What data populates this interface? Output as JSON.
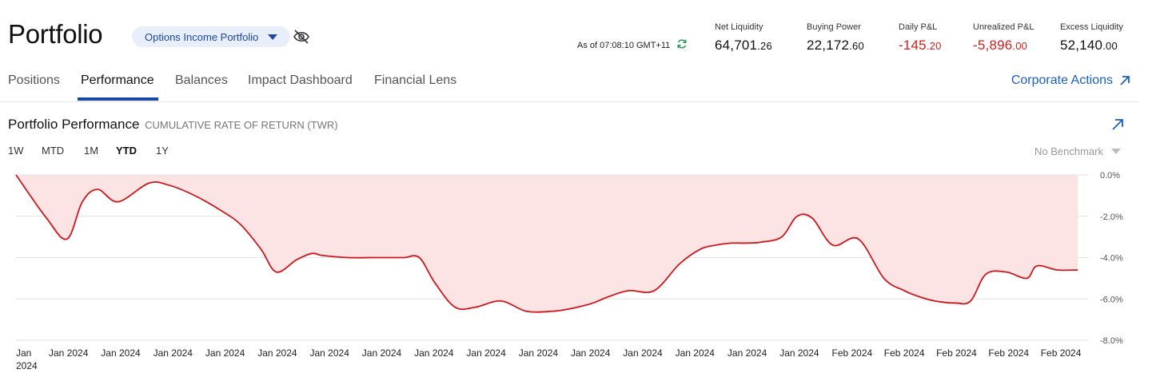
{
  "header": {
    "title": "Portfolio",
    "account_select": "Options Income Portfolio",
    "as_of": "As of 07:08:10 GMT+11"
  },
  "metrics": [
    {
      "label": "Net Liquidity",
      "int": "64,701",
      "dec": ".26",
      "negative": false
    },
    {
      "label": "Buying Power",
      "int": "22,172",
      "dec": ".60",
      "negative": false
    },
    {
      "label": "Daily P&L",
      "int": "-145",
      "dec": ".20",
      "negative": true
    },
    {
      "label": "Unrealized P&L",
      "int": "-5,896",
      "dec": ".00",
      "negative": true
    },
    {
      "label": "Excess Liquidity",
      "int": "52,140",
      "dec": ".00",
      "negative": false
    }
  ],
  "tabs": [
    "Positions",
    "Performance",
    "Balances",
    "Impact Dashboard",
    "Financial Lens"
  ],
  "active_tab": "Performance",
  "corporate_actions": "Corporate Actions",
  "section": {
    "title": "Portfolio Performance",
    "subtitle": "CUMULATIVE RATE OF RETURN (TWR)"
  },
  "ranges": [
    "1W",
    "MTD",
    "1M",
    "YTD",
    "1Y"
  ],
  "active_range": "YTD",
  "benchmark": "No Benchmark",
  "colors": {
    "accent": "#1a48a8",
    "negative": "#cc1f1f",
    "line": "#d0161b",
    "fill": "#fce4e4"
  },
  "chart_data": {
    "type": "area",
    "ylim": [
      -8,
      0
    ],
    "ytick_labels": [
      "0.0%",
      "-2.0%",
      "-4.0%",
      "-6.0%",
      "-8.0%"
    ],
    "xtick_labels": [
      "Jan 2024",
      "Jan 2024",
      "Jan 2024",
      "Jan 2024",
      "Jan 2024",
      "Jan 2024",
      "Jan 2024",
      "Jan 2024",
      "Jan 2024",
      "Jan 2024",
      "Jan 2024",
      "Jan 2024",
      "Jan 2024",
      "Jan 2024",
      "Jan 2024",
      "Jan 2024",
      "Feb 2024",
      "Feb 2024",
      "Feb 2024",
      "Feb 2024",
      "Feb 2024"
    ],
    "series": [
      {
        "x": [
          0,
          0.6,
          1.0,
          1.3,
          1.6,
          2.0,
          2.6,
          3.0,
          3.5,
          4.0,
          4.4,
          4.8,
          5.1,
          5.5,
          5.8,
          6.0,
          6.5,
          7.0,
          7.3,
          7.6,
          7.9,
          8.2,
          8.6,
          9.0,
          9.5,
          10.0,
          10.5,
          10.8,
          11.0,
          11.3,
          11.6,
          12.0,
          12.5,
          13.0,
          13.4,
          13.7,
          14.0,
          14.3,
          14.6,
          15.0,
          15.3,
          15.6,
          16.0,
          16.5,
          17.0,
          17.4,
          17.7,
          18.0,
          18.4,
          18.7,
          19.0,
          19.4,
          19.8,
          20.0,
          20.4,
          20.8
        ],
        "y": [
          0.0,
          -2.1,
          -3.1,
          -1.3,
          -0.7,
          -1.3,
          -0.4,
          -0.5,
          -1.0,
          -1.7,
          -2.4,
          -3.6,
          -4.7,
          -4.1,
          -3.8,
          -3.9,
          -4.0,
          -4.0,
          -4.0,
          -4.0,
          -4.0,
          -5.2,
          -6.4,
          -6.4,
          -6.1,
          -6.6,
          -6.6,
          -6.5,
          -6.4,
          -6.2,
          -5.9,
          -5.6,
          -5.6,
          -4.3,
          -3.6,
          -3.4,
          -3.3,
          -3.3,
          -3.25,
          -3.0,
          -2.0,
          -2.1,
          -3.4,
          -3.1,
          -5.0,
          -5.6,
          -5.9,
          -6.1,
          -6.2,
          -6.1,
          -4.8,
          -4.7,
          -5.0,
          -4.4,
          -4.6,
          -4.6
        ]
      }
    ]
  }
}
